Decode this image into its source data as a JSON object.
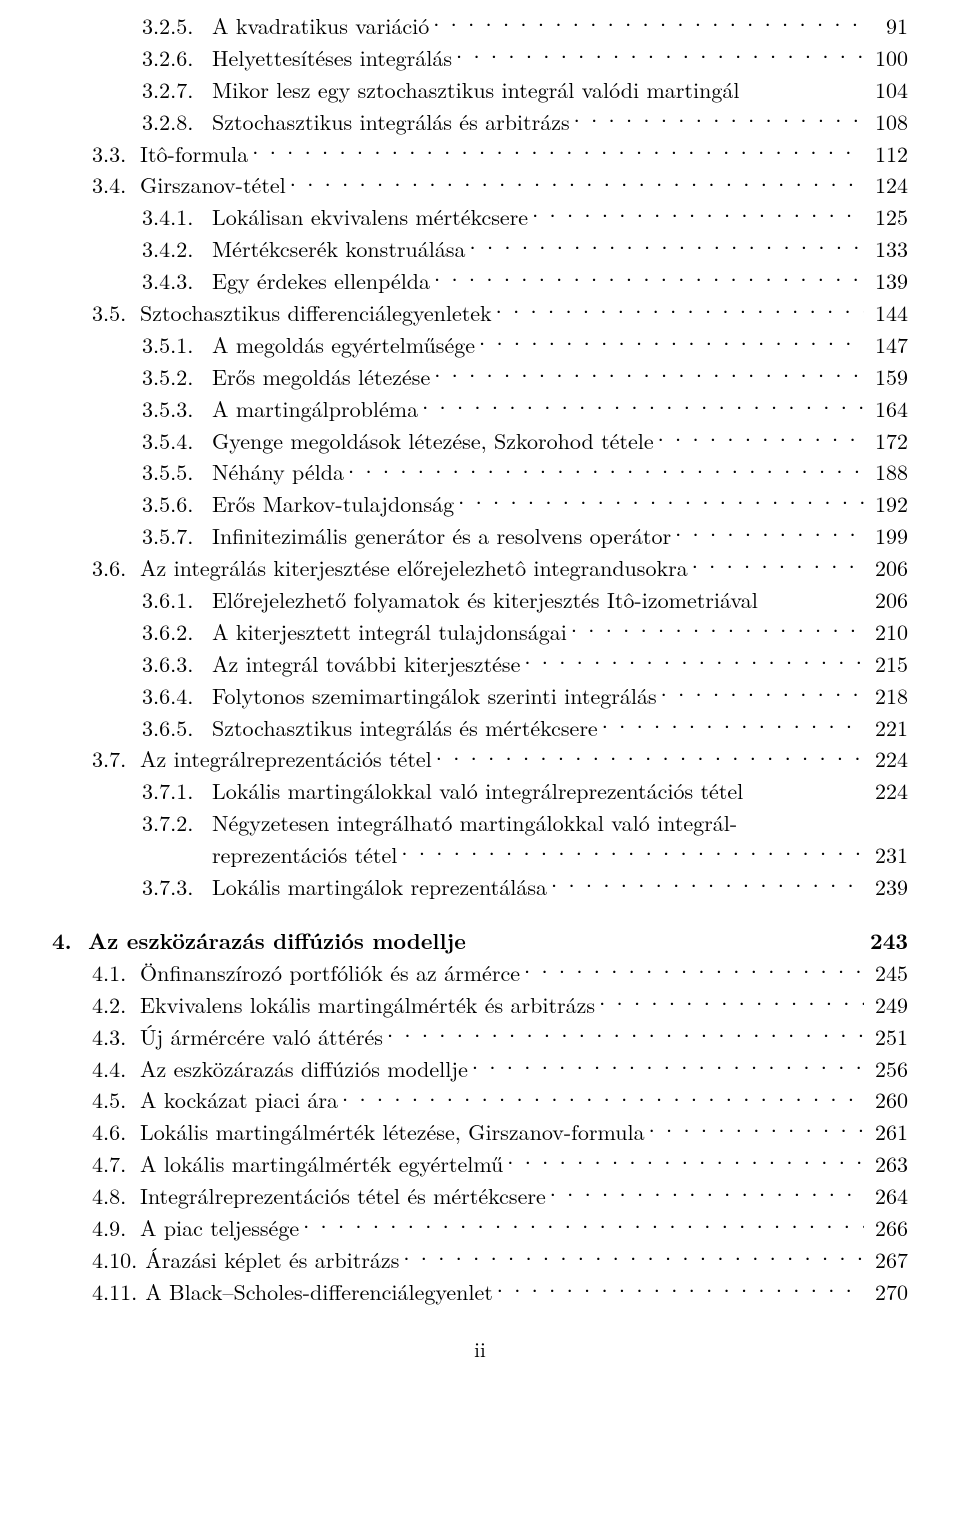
{
  "entries": [
    {
      "level": 3,
      "num": "3.2.5.",
      "title": "A kvadratikus variáció",
      "page": "91"
    },
    {
      "level": 3,
      "num": "3.2.6.",
      "title": "Helyettesítéses integrálás",
      "page": "100"
    },
    {
      "level": 3,
      "num": "3.2.7.",
      "title": "Mikor lesz egy sztochasztikus integrál valódi martingál",
      "page": "104",
      "noleader": true
    },
    {
      "level": 3,
      "num": "3.2.8.",
      "title": "Sztochasztikus integrálás és arbitrázs",
      "page": "108"
    },
    {
      "level": 2,
      "num": "3.3.",
      "title": "Itô-formula",
      "page": "112"
    },
    {
      "level": 2,
      "num": "3.4.",
      "title": "Girszanov-tétel",
      "page": "124"
    },
    {
      "level": 3,
      "num": "3.4.1.",
      "title": "Lokálisan ekvivalens mértékcsere",
      "page": "125"
    },
    {
      "level": 3,
      "num": "3.4.2.",
      "title": "Mértékcserék konstruálása",
      "page": "133"
    },
    {
      "level": 3,
      "num": "3.4.3.",
      "title": "Egy érdekes ellenpélda",
      "page": "139"
    },
    {
      "level": 2,
      "num": "3.5.",
      "title": "Sztochasztikus differenciálegyenletek",
      "page": "144"
    },
    {
      "level": 3,
      "num": "3.5.1.",
      "title": "A megoldás egyértelműsége",
      "page": "147"
    },
    {
      "level": 3,
      "num": "3.5.2.",
      "title": "Erős megoldás létezése",
      "page": "159"
    },
    {
      "level": 3,
      "num": "3.5.3.",
      "title": "A martingálprobléma",
      "page": "164"
    },
    {
      "level": 3,
      "num": "3.5.4.",
      "title": "Gyenge megoldások létezése, Szkorohod tétele",
      "page": "172"
    },
    {
      "level": 3,
      "num": "3.5.5.",
      "title": "Néhány példa",
      "page": "188"
    },
    {
      "level": 3,
      "num": "3.5.6.",
      "title": "Erős Markov-tulajdonság",
      "page": "192"
    },
    {
      "level": 3,
      "num": "3.5.7.",
      "title": "Infinitezimális generátor és a resolvens operátor",
      "page": "199"
    },
    {
      "level": 2,
      "num": "3.6.",
      "title": "Az integrálás kiterjesztése előrejelezhetô integrandusokra",
      "page": "206"
    },
    {
      "level": 3,
      "num": "3.6.1.",
      "title": "Előrejelezhető folyamatok és kiterjesztés Itô-izometriával",
      "page": "206",
      "noleader": true
    },
    {
      "level": 3,
      "num": "3.6.2.",
      "title": "A kiterjesztett integrál tulajdonságai",
      "page": "210"
    },
    {
      "level": 3,
      "num": "3.6.3.",
      "title": "Az integrál további kiterjesztése",
      "page": "215"
    },
    {
      "level": 3,
      "num": "3.6.4.",
      "title": "Folytonos szemimartingálok szerinti integrálás",
      "page": "218"
    },
    {
      "level": 3,
      "num": "3.6.5.",
      "title": "Sztochasztikus integrálás és mértékcsere",
      "page": "221"
    },
    {
      "level": 2,
      "num": "3.7.",
      "title": "Az integrálreprezentációs tétel",
      "page": "224"
    },
    {
      "level": 3,
      "num": "3.7.1.",
      "title": "Lokális martingálokkal való integrálreprezentációs tétel",
      "page": "224",
      "noleader": true
    },
    {
      "level": 3,
      "num": "3.7.2.",
      "title": "Négyzetesen integrálható martingálokkal való integrál-",
      "title2": "reprezentációs tétel",
      "page": "231"
    },
    {
      "level": 3,
      "num": "3.7.3.",
      "title": "Lokális martingálok reprezentálása",
      "page": "239"
    },
    {
      "level": 1,
      "num": "4.",
      "title": "Az eszközárazás diffúziós modellje",
      "page": "243",
      "bold": true,
      "chapter": true,
      "noleader": true
    },
    {
      "level": 2,
      "num": "4.1.",
      "title": "Önfinanszírozó portfóliók és az ármérce",
      "page": "245"
    },
    {
      "level": 2,
      "num": "4.2.",
      "title": "Ekvivalens lokális martingálmérték és arbitrázs",
      "page": "249"
    },
    {
      "level": 2,
      "num": "4.3.",
      "title": "Új ármércére való áttérés",
      "page": "251"
    },
    {
      "level": 2,
      "num": "4.4.",
      "title": "Az eszközárazás diffúziós modellje",
      "page": "256"
    },
    {
      "level": 2,
      "num": "4.5.",
      "title": "A kockázat piaci ára",
      "page": "260"
    },
    {
      "level": 2,
      "num": "4.6.",
      "title": "Lokális martingálmérték létezése, Girszanov-formula",
      "page": "261"
    },
    {
      "level": 2,
      "num": "4.7.",
      "title": "A lokális martingálmérték egyértelmű",
      "page": "263"
    },
    {
      "level": 2,
      "num": "4.8.",
      "title": "Integrálreprezentációs tétel és mértékcsere",
      "page": "264"
    },
    {
      "level": 2,
      "num": "4.9.",
      "title": "A piac teljessége",
      "page": "266"
    },
    {
      "level": 2,
      "num": "4.10.",
      "title": "Árazási képlet és arbitrázs",
      "page": "267"
    },
    {
      "level": 2,
      "num": "4.11.",
      "title": "A Black–Scholes-differenciálegyenlet",
      "page": "270"
    }
  ],
  "footer": "ii"
}
